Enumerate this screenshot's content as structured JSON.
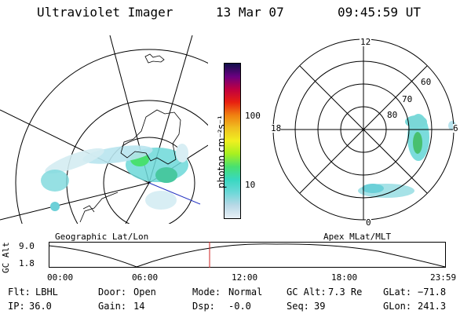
{
  "header": {
    "instrument": "Ultraviolet Imager",
    "date": "13 Mar 07",
    "time": "09:45:59 UT"
  },
  "left_map": {
    "label": "Geographic Lat/Lon"
  },
  "right_map": {
    "label": "Apex MLat/MLT",
    "mlt_labels": [
      "12",
      "18",
      "6",
      "0"
    ],
    "mlat_labels": [
      "60",
      "70",
      "80"
    ]
  },
  "colorbar": {
    "unit_label": "photon cm⁻²s⁻¹",
    "ticks": [
      "100",
      "10"
    ],
    "scale": "log",
    "colors": [
      "#e8f0f6",
      "#b8d8e6",
      "#6cd8d8",
      "#38d8c0",
      "#48e070",
      "#a8f020",
      "#f0f020",
      "#f0c020",
      "#f08010",
      "#e82010",
      "#c00040",
      "#6a0080",
      "#10104a"
    ]
  },
  "altitude_plot": {
    "ylabel": "GC Alt",
    "yticks": [
      "9.0",
      "1.8"
    ],
    "xticks": [
      "00:00",
      "06:00",
      "12:00",
      "18:00",
      "23:59"
    ],
    "current_time_marker": "09:45:59",
    "marker_color": "#cc2222"
  },
  "info": {
    "flt_label": "Flt:",
    "flt_value": "LBHL",
    "ip_label": "IP:",
    "ip_value": "36.0",
    "door_label": "Door:",
    "door_value": "Open",
    "gain_label": "Gain:",
    "gain_value": "14",
    "mode_label": "Mode:",
    "mode_value": "Normal",
    "dsp_label": "Dsp:",
    "dsp_value": "-0.0",
    "gcalt_label": "GC Alt:",
    "gcalt_value": "7.3 Re",
    "seq_label": "Seq:",
    "seq_value": "39",
    "glat_label": "GLat:",
    "glat_value": "−71.8",
    "glon_label": "GLon:",
    "glon_value": "241.3"
  }
}
